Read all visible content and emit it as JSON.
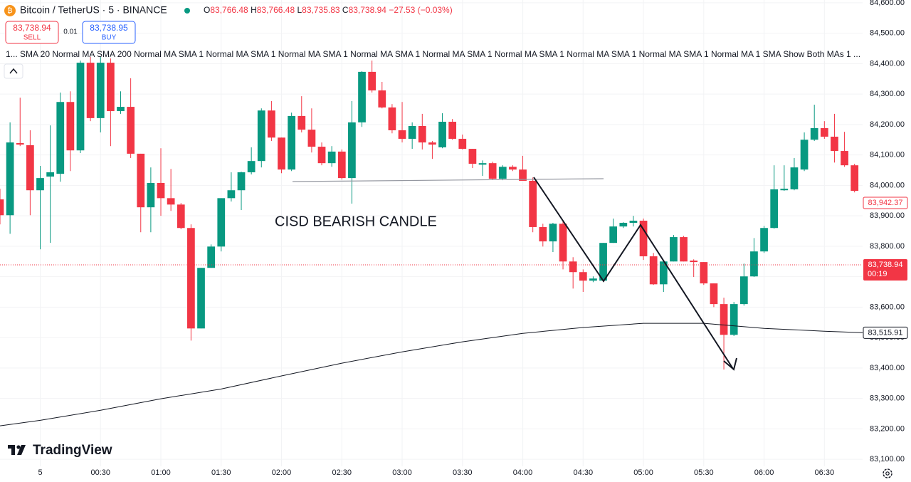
{
  "chart_data": {
    "type": "candlestick",
    "header": {
      "symbol": "Bitcoin / TetherUS · 5 · BINANCE",
      "ohlc": [
        {
          "key": "O",
          "value": "83,766.48"
        },
        {
          "key": "H",
          "value": "83,766.48"
        },
        {
          "key": "L",
          "value": "83,735.83"
        },
        {
          "key": "C",
          "value": "83,738.94"
        }
      ],
      "change": "−27.53 (−0.03%)"
    },
    "trade": {
      "sell_price": "83,738.94",
      "sell": "SELL",
      "spread": "0.01",
      "buy_price": "83,738.95",
      "buy": "BUY"
    },
    "indicators": "1... SMA 20 Normal MA SMA 200 Normal MA SMA 1 Normal MA SMA 1 Normal MA SMA 1 Normal MA SMA 1 Normal MA SMA 1 Normal MA SMA 1 Normal MA SMA 1 Normal MA SMA 1 Normal MA 1 SMA Show Both MAs 1 ...",
    "annotations": [
      "CISD BEARISH CANDLE"
    ],
    "logo": "TradingView",
    "up_color": "#089981",
    "down_color": "#f23645",
    "x": [
      "23:40",
      "23:45",
      "23:50",
      "23:55",
      "00:00",
      "00:05",
      "00:10",
      "00:15",
      "00:20",
      "00:25",
      "00:30",
      "00:35",
      "00:40",
      "00:45",
      "00:50",
      "00:55",
      "01:00",
      "01:05",
      "01:10",
      "01:15",
      "01:20",
      "01:25",
      "01:30",
      "01:35",
      "01:40",
      "01:45",
      "01:50",
      "01:55",
      "02:00",
      "02:05",
      "02:10",
      "02:15",
      "02:20",
      "02:25",
      "02:30",
      "02:35",
      "02:40",
      "02:45",
      "02:50",
      "02:55",
      "03:00",
      "03:05",
      "03:10",
      "03:15",
      "03:20",
      "03:25",
      "03:30",
      "03:35",
      "03:40",
      "03:45",
      "03:50",
      "03:55",
      "04:00",
      "04:05",
      "04:10",
      "04:15",
      "04:20",
      "04:25",
      "04:30",
      "04:35",
      "04:40",
      "04:45",
      "04:50",
      "04:55",
      "05:00",
      "05:05",
      "05:10",
      "05:15",
      "05:20",
      "05:25",
      "05:30",
      "05:35",
      "05:40",
      "05:45",
      "05:50",
      "05:55",
      "06:00",
      "06:05",
      "06:10",
      "06:15",
      "06:20",
      "06:25",
      "06:30",
      "06:35",
      "06:40",
      "06:45"
    ],
    "open": [
      83954,
      83902,
      84139,
      84132,
      83984,
      84029,
      84038,
      84274,
      84115,
      84403,
      84221,
      84403,
      84244,
      84258,
      84104,
      83928,
      84008,
      83958,
      83937,
      83860,
      83530,
      83729,
      83799,
      83958,
      83984,
      84043,
      84080,
      84246,
      84157,
      84052,
      84228,
      84183,
      84127,
      84073,
      84111,
      84024,
      84207,
      84373,
      84312,
      84256,
      84181,
      84153,
      84195,
      84141,
      84125,
      84209,
      84153,
      84120,
      84068,
      84073,
      84022,
      84061,
      84052,
      84015,
      83863,
      83816,
      83874,
      83750,
      83715,
      83687,
      83687,
      83811,
      83865,
      83877,
      83884,
      83767,
      83675,
      83750,
      83830,
      83753,
      83748,
      83678,
      83610,
      83509,
      83610,
      83701,
      83783,
      83860,
      83984,
      83987,
      84052,
      84150,
      84188,
      84160,
      84113,
      84066
    ],
    "high": [
      83989,
      84207,
      84288,
      84181,
      84064,
      84197,
      84305,
      84309,
      84410,
      84422,
      84422,
      84417,
      84309,
      84352,
      84104,
      84059,
      84122,
      84054,
      83942,
      83872,
      83729,
      83806,
      83958,
      84043,
      84045,
      84125,
      84253,
      84277,
      84157,
      84239,
      84293,
      84253,
      84141,
      84129,
      84118,
      84277,
      84375,
      84410,
      84340,
      84267,
      84274,
      84207,
      84235,
      84146,
      84237,
      84218,
      84167,
      84120,
      84082,
      84078,
      84066,
      84066,
      84097,
      84026,
      83874,
      83877,
      83884,
      83764,
      83724,
      83701,
      83811,
      83891,
      83879,
      83900,
      83891,
      83778,
      83755,
      83837,
      83834,
      83757,
      83748,
      83678,
      83631,
      83617,
      83743,
      83827,
      83867,
      84066,
      84066,
      84090,
      84174,
      84265,
      84211,
      84235,
      84176,
      84071
    ],
    "low": [
      83872,
      83841,
      84129,
      83902,
      83790,
      83811,
      84012,
      84047,
      84106,
      84211,
      84174,
      84129,
      84235,
      84090,
      83846,
      83846,
      83900,
      83916,
      83856,
      83490,
      83530,
      83729,
      83783,
      83947,
      83919,
      84036,
      84059,
      84146,
      84040,
      84047,
      84174,
      84108,
      84066,
      84061,
      84019,
      83940,
      84192,
      84305,
      84253,
      84171,
      84141,
      84120,
      84118,
      84087,
      84122,
      84150,
      84118,
      84057,
      84031,
      84019,
      84017,
      84047,
      84015,
      83846,
      83799,
      83781,
      83724,
      83661,
      83650,
      83682,
      83685,
      83811,
      83860,
      83865,
      83755,
      83673,
      83650,
      83750,
      83750,
      83699,
      83673,
      83600,
      83395,
      83505,
      83605,
      83699,
      83778,
      83858,
      83982,
      83984,
      84047,
      84146,
      84153,
      84075,
      84061,
      83977
    ],
    "close": [
      83902,
      84141,
      84134,
      83984,
      84024,
      84043,
      84274,
      84115,
      84403,
      84221,
      84403,
      84244,
      84258,
      84104,
      83928,
      84008,
      83958,
      83937,
      83860,
      83530,
      83729,
      83799,
      83958,
      83984,
      84043,
      84080,
      84246,
      84157,
      84052,
      84228,
      84183,
      84127,
      84073,
      84111,
      84024,
      84207,
      84373,
      84312,
      84256,
      84181,
      84153,
      84195,
      84141,
      84134,
      84209,
      84153,
      84120,
      84071,
      84073,
      84022,
      84061,
      84052,
      84015,
      83863,
      83816,
      83874,
      83750,
      83715,
      83687,
      83694,
      83811,
      83865,
      83877,
      83884,
      83767,
      83675,
      83750,
      83830,
      83750,
      83748,
      83678,
      83610,
      83509,
      83610,
      83701,
      83783,
      83860,
      83987,
      83989,
      84059,
      84150,
      84188,
      84160,
      84113,
      84066,
      83982
    ],
    "lines": [
      {
        "color": "#131722",
        "x": [
          "23:40",
          "00:00",
          "00:30",
          "01:00",
          "01:30",
          "02:00",
          "02:30",
          "03:00",
          "03:30",
          "04:00",
          "04:30",
          "05:00",
          "05:30",
          "06:00",
          "06:30",
          "06:49"
        ],
        "values": [
          83210,
          83228,
          83261,
          83299,
          83331,
          83374,
          83416,
          83453,
          83486,
          83514,
          83533,
          83547,
          83547,
          83530,
          83521,
          83516
        ]
      }
    ],
    "price_labels": [
      {
        "value": 83942.37,
        "label": "83,942.37",
        "color": "#f23645",
        "style": "outline"
      },
      {
        "value": 83738.94,
        "label": "83,738.94",
        "timer": "00:19",
        "color": "#f23645",
        "style": "filled"
      },
      {
        "value": 83515.91,
        "label": "83,515.91",
        "color": "#131722",
        "style": "outline"
      }
    ],
    "xlim": [
      "23:40",
      "06:49"
    ],
    "xticks": [
      {
        "value": "00:00",
        "label": "5"
      },
      "00:30",
      "01:00",
      "01:30",
      "02:00",
      "02:30",
      "03:00",
      "03:30",
      "04:00",
      "04:30",
      "05:00",
      "05:30",
      "06:00",
      "06:30"
    ],
    "ylim": [
      83077,
      84609
    ],
    "yticks": [
      {
        "value": 84600,
        "label": "84,600.00"
      },
      {
        "value": 84500,
        "label": "84,500.00"
      },
      {
        "value": 84400,
        "label": "84,400.00"
      },
      {
        "value": 84300,
        "label": "84,300.00"
      },
      {
        "value": 84200,
        "label": "84,200.00"
      },
      {
        "value": 84100,
        "label": "84,100.00"
      },
      {
        "value": 84000,
        "label": "84,000.00"
      },
      {
        "value": 83900,
        "label": "83,900.00"
      },
      {
        "value": 83800,
        "label": "83,800.00"
      },
      {
        "value": 83700,
        "label": "83,700.00"
      },
      {
        "value": 83600,
        "label": "83,600.00"
      },
      {
        "value": 83500,
        "label": "83,500.00"
      },
      {
        "value": 83400,
        "label": "83,400.00"
      },
      {
        "value": 83300,
        "label": "83,300.00"
      },
      {
        "value": 83200,
        "label": "83,200.00"
      },
      {
        "value": 83100,
        "label": "83,100.00"
      }
    ],
    "grid": true
  }
}
